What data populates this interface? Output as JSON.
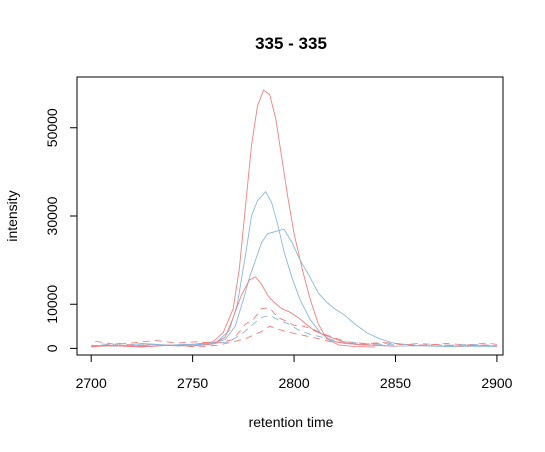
{
  "chart_data": {
    "type": "line",
    "title": "335 - 335",
    "xlabel": "retention time",
    "ylabel": "intensity",
    "xlim": [
      2693,
      2903
    ],
    "ylim": [
      -1500,
      61500
    ],
    "x_ticks": [
      2700,
      2750,
      2800,
      2850,
      2900
    ],
    "x_tick_labels": [
      "2700",
      "2750",
      "2800",
      "2850",
      "2900"
    ],
    "y_ticks": [
      0,
      10000,
      30000,
      50000
    ],
    "y_tick_labels": [
      "0",
      "10000",
      "30000",
      "50000"
    ],
    "grid": false,
    "legend": "none",
    "colors": {
      "red": "#f08080",
      "blue": "#8ab8de",
      "axis": "#000000"
    },
    "series": [
      {
        "color": "red",
        "dash": "solid",
        "points": [
          [
            2700,
            600
          ],
          [
            2710,
            700
          ],
          [
            2720,
            400
          ],
          [
            2730,
            900
          ],
          [
            2740,
            600
          ],
          [
            2750,
            900
          ],
          [
            2760,
            1500
          ],
          [
            2765,
            3500
          ],
          [
            2770,
            9000
          ],
          [
            2773,
            18000
          ],
          [
            2776,
            32000
          ],
          [
            2779,
            46000
          ],
          [
            2782,
            55000
          ],
          [
            2785,
            58500
          ],
          [
            2788,
            57500
          ],
          [
            2791,
            52000
          ],
          [
            2794,
            43000
          ],
          [
            2797,
            34000
          ],
          [
            2800,
            26000
          ],
          [
            2804,
            18000
          ],
          [
            2808,
            11000
          ],
          [
            2812,
            5500
          ],
          [
            2816,
            2200
          ],
          [
            2822,
            800
          ],
          [
            2830,
            400
          ],
          [
            2840,
            300
          ]
        ]
      },
      {
        "color": "blue",
        "dash": "solid",
        "points": [
          [
            2700,
            700
          ],
          [
            2712,
            500
          ],
          [
            2725,
            1100
          ],
          [
            2740,
            700
          ],
          [
            2752,
            800
          ],
          [
            2762,
            1500
          ],
          [
            2768,
            4000
          ],
          [
            2772,
            10000
          ],
          [
            2776,
            21000
          ],
          [
            2779,
            30000
          ],
          [
            2782,
            33500
          ],
          [
            2786,
            35500
          ],
          [
            2789,
            33000
          ],
          [
            2792,
            28000
          ],
          [
            2795,
            22000
          ],
          [
            2799,
            16000
          ],
          [
            2803,
            11000
          ],
          [
            2808,
            6500
          ],
          [
            2813,
            3500
          ],
          [
            2818,
            1800
          ],
          [
            2825,
            1100
          ],
          [
            2832,
            900
          ],
          [
            2840,
            700
          ],
          [
            2850,
            500
          ],
          [
            2860,
            600
          ],
          [
            2875,
            400
          ],
          [
            2890,
            500
          ],
          [
            2900,
            400
          ]
        ]
      },
      {
        "color": "blue",
        "dash": "solid",
        "points": [
          [
            2702,
            500
          ],
          [
            2715,
            700
          ],
          [
            2730,
            500
          ],
          [
            2745,
            900
          ],
          [
            2758,
            1000
          ],
          [
            2766,
            2000
          ],
          [
            2771,
            5000
          ],
          [
            2775,
            11000
          ],
          [
            2778,
            16000
          ],
          [
            2781,
            20000
          ],
          [
            2784,
            24000
          ],
          [
            2787,
            26000
          ],
          [
            2791,
            26500
          ],
          [
            2795,
            27000
          ],
          [
            2799,
            24000
          ],
          [
            2803,
            20000
          ],
          [
            2808,
            16000
          ],
          [
            2812,
            12500
          ],
          [
            2816,
            10500
          ],
          [
            2820,
            9000
          ],
          [
            2825,
            7500
          ],
          [
            2830,
            5500
          ],
          [
            2836,
            3500
          ],
          [
            2842,
            2200
          ],
          [
            2850,
            1100
          ],
          [
            2860,
            700
          ],
          [
            2875,
            500
          ],
          [
            2890,
            700
          ],
          [
            2900,
            500
          ]
        ]
      },
      {
        "color": "red",
        "dash": "solid",
        "points": [
          [
            2700,
            400
          ],
          [
            2712,
            600
          ],
          [
            2725,
            300
          ],
          [
            2738,
            700
          ],
          [
            2750,
            500
          ],
          [
            2760,
            1000
          ],
          [
            2766,
            2500
          ],
          [
            2770,
            7000
          ],
          [
            2774,
            12000
          ],
          [
            2778,
            15500
          ],
          [
            2781,
            16200
          ],
          [
            2784,
            14500
          ],
          [
            2787,
            12000
          ],
          [
            2790,
            10500
          ],
          [
            2794,
            9000
          ],
          [
            2798,
            8200
          ],
          [
            2802,
            7000
          ],
          [
            2806,
            5500
          ],
          [
            2810,
            4000
          ],
          [
            2815,
            3000
          ],
          [
            2820,
            2200
          ],
          [
            2826,
            1200
          ],
          [
            2832,
            800
          ],
          [
            2840,
            700
          ],
          [
            2850,
            500
          ]
        ]
      },
      {
        "color": "red",
        "dash": "dashed",
        "points": [
          [
            2702,
            1600
          ],
          [
            2712,
            900
          ],
          [
            2722,
            1300
          ],
          [
            2732,
            1800
          ],
          [
            2742,
            1200
          ],
          [
            2752,
            1500
          ],
          [
            2762,
            1200
          ],
          [
            2770,
            2000
          ],
          [
            2776,
            5500
          ],
          [
            2780,
            6600
          ],
          [
            2784,
            9000
          ],
          [
            2788,
            9200
          ],
          [
            2792,
            7000
          ],
          [
            2796,
            6200
          ],
          [
            2800,
            5200
          ],
          [
            2805,
            5000
          ],
          [
            2810,
            4200
          ],
          [
            2815,
            3200
          ],
          [
            2820,
            2400
          ],
          [
            2826,
            1500
          ],
          [
            2835,
            1100
          ],
          [
            2845,
            1300
          ],
          [
            2855,
            900
          ],
          [
            2865,
            700
          ],
          [
            2875,
            1100
          ],
          [
            2885,
            800
          ],
          [
            2895,
            1200
          ],
          [
            2900,
            900
          ]
        ]
      },
      {
        "color": "blue",
        "dash": "dashed",
        "points": [
          [
            2705,
            1000
          ],
          [
            2718,
            600
          ],
          [
            2730,
            900
          ],
          [
            2745,
            500
          ],
          [
            2758,
            900
          ],
          [
            2768,
            1500
          ],
          [
            2775,
            3500
          ],
          [
            2780,
            5600
          ],
          [
            2784,
            7000
          ],
          [
            2788,
            7500
          ],
          [
            2792,
            6500
          ],
          [
            2797,
            5600
          ],
          [
            2802,
            4200
          ],
          [
            2808,
            3200
          ],
          [
            2814,
            2500
          ],
          [
            2820,
            1800
          ],
          [
            2828,
            1300
          ],
          [
            2838,
            1000
          ],
          [
            2850,
            800
          ],
          [
            2862,
            1100
          ],
          [
            2875,
            700
          ],
          [
            2888,
            900
          ],
          [
            2900,
            600
          ]
        ]
      },
      {
        "color": "red",
        "dash": "dashed",
        "points": [
          [
            2700,
            300
          ],
          [
            2714,
            1100
          ],
          [
            2726,
            400
          ],
          [
            2740,
            800
          ],
          [
            2752,
            300
          ],
          [
            2762,
            700
          ],
          [
            2770,
            1500
          ],
          [
            2776,
            2200
          ],
          [
            2780,
            3000
          ],
          [
            2784,
            3800
          ],
          [
            2788,
            5000
          ],
          [
            2792,
            4400
          ],
          [
            2796,
            3800
          ],
          [
            2801,
            3300
          ],
          [
            2806,
            2800
          ],
          [
            2812,
            2200
          ],
          [
            2818,
            1500
          ],
          [
            2826,
            1200
          ],
          [
            2836,
            900
          ],
          [
            2846,
            1200
          ],
          [
            2858,
            600
          ],
          [
            2870,
            900
          ],
          [
            2882,
            500
          ],
          [
            2895,
            800
          ],
          [
            2900,
            500
          ]
        ]
      }
    ]
  }
}
